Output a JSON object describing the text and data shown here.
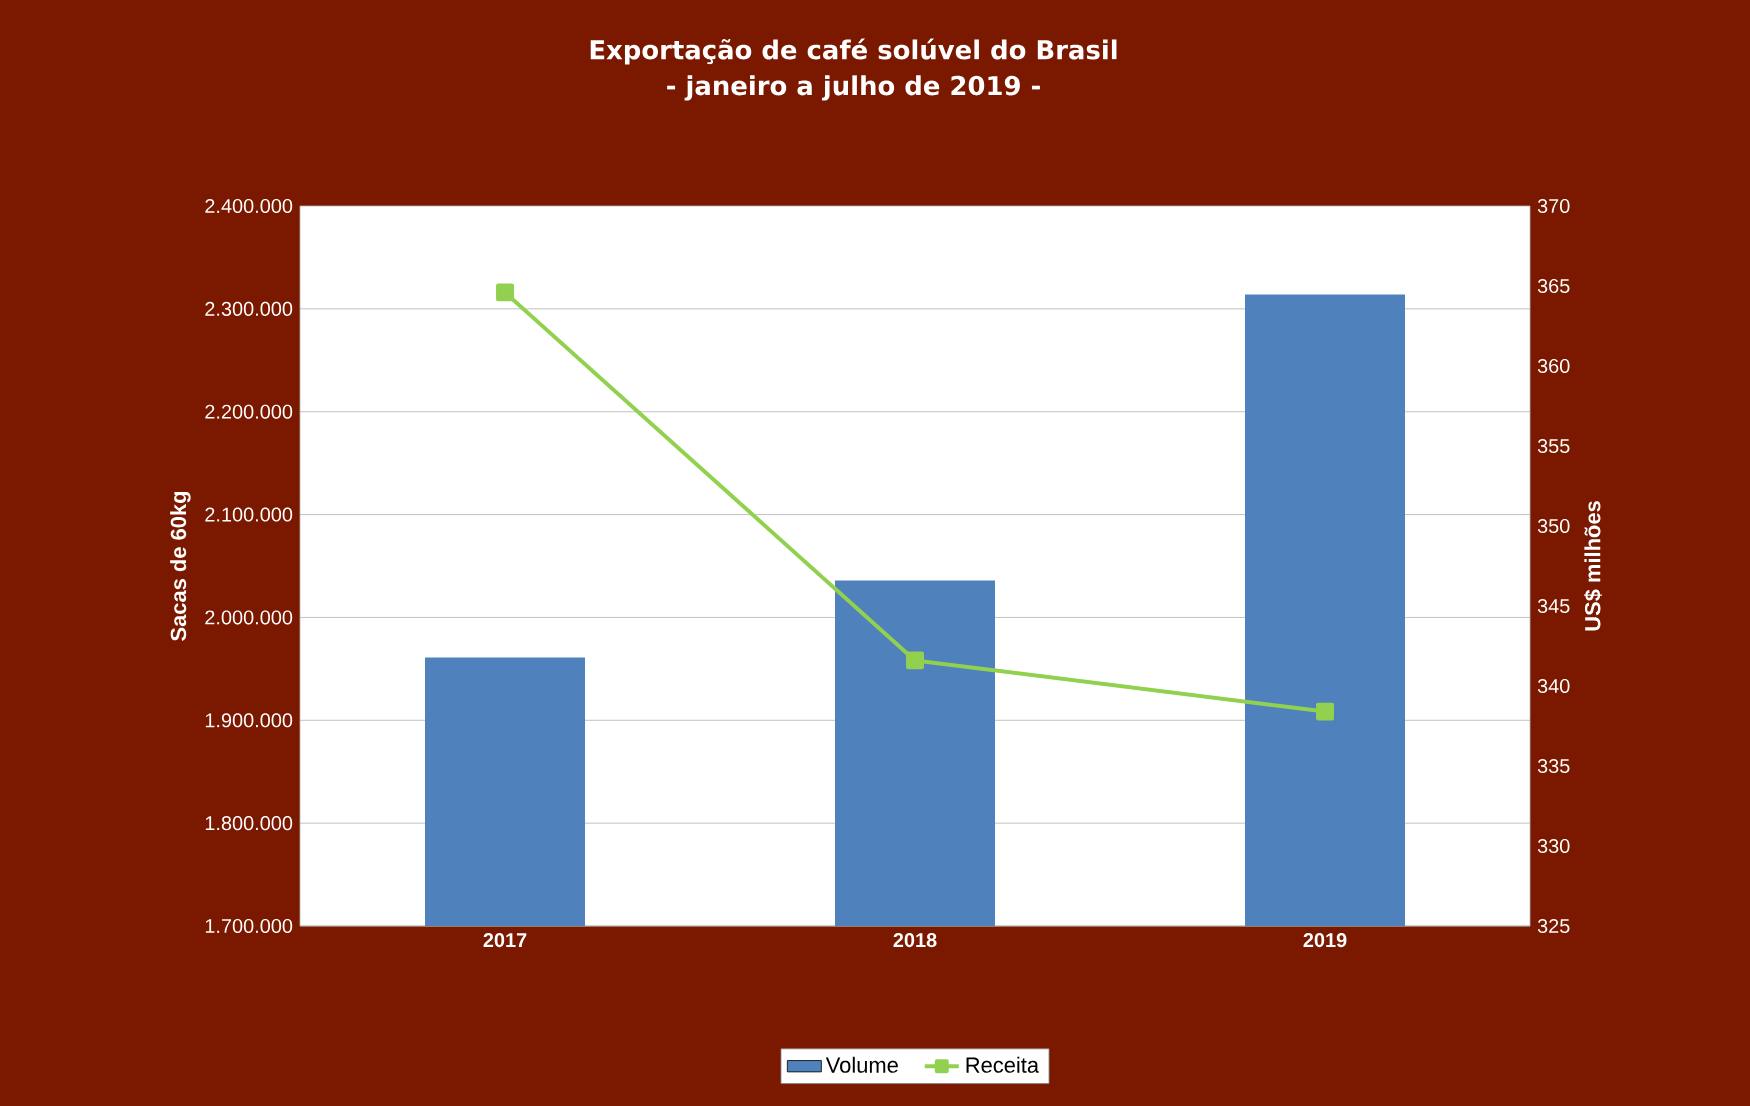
{
  "chart_data": {
    "type": "bar",
    "title": "Exportação de café solúvel do Brasil",
    "subtitle": "- janeiro a julho de 2019 -",
    "categories": [
      "2017",
      "2018",
      "2019"
    ],
    "ylabel": "Sacas de 60kg",
    "y2label": "US$ milhões",
    "series": [
      {
        "name": "Volume",
        "color": "#4f81bd",
        "values": [
          1961000,
          2036000,
          2314000
        ]
      },
      {
        "name": "Receita",
        "type": "line",
        "axis": "y2",
        "color": "#92d050",
        "marker": "square",
        "values": [
          364.6,
          341.6,
          338.4
        ]
      }
    ],
    "ylim": [
      1700000,
      2400000
    ],
    "yticks": [
      {
        "value": 1700000,
        "label": "1.700.000"
      },
      {
        "value": 1800000,
        "label": "1.800.000"
      },
      {
        "value": 1900000,
        "label": "1.900.000"
      },
      {
        "value": 2000000,
        "label": "2.000.000"
      },
      {
        "value": 2100000,
        "label": "2.100.000"
      },
      {
        "value": 2200000,
        "label": "2.200.000"
      },
      {
        "value": 2300000,
        "label": "2.300.000"
      },
      {
        "value": 2400000,
        "label": "2.400.000"
      }
    ],
    "y2lim": [
      325,
      370
    ],
    "y2ticks": [
      325,
      330,
      335,
      340,
      345,
      350,
      355,
      360,
      365,
      370
    ],
    "grid": "y",
    "legend": "bottom"
  }
}
